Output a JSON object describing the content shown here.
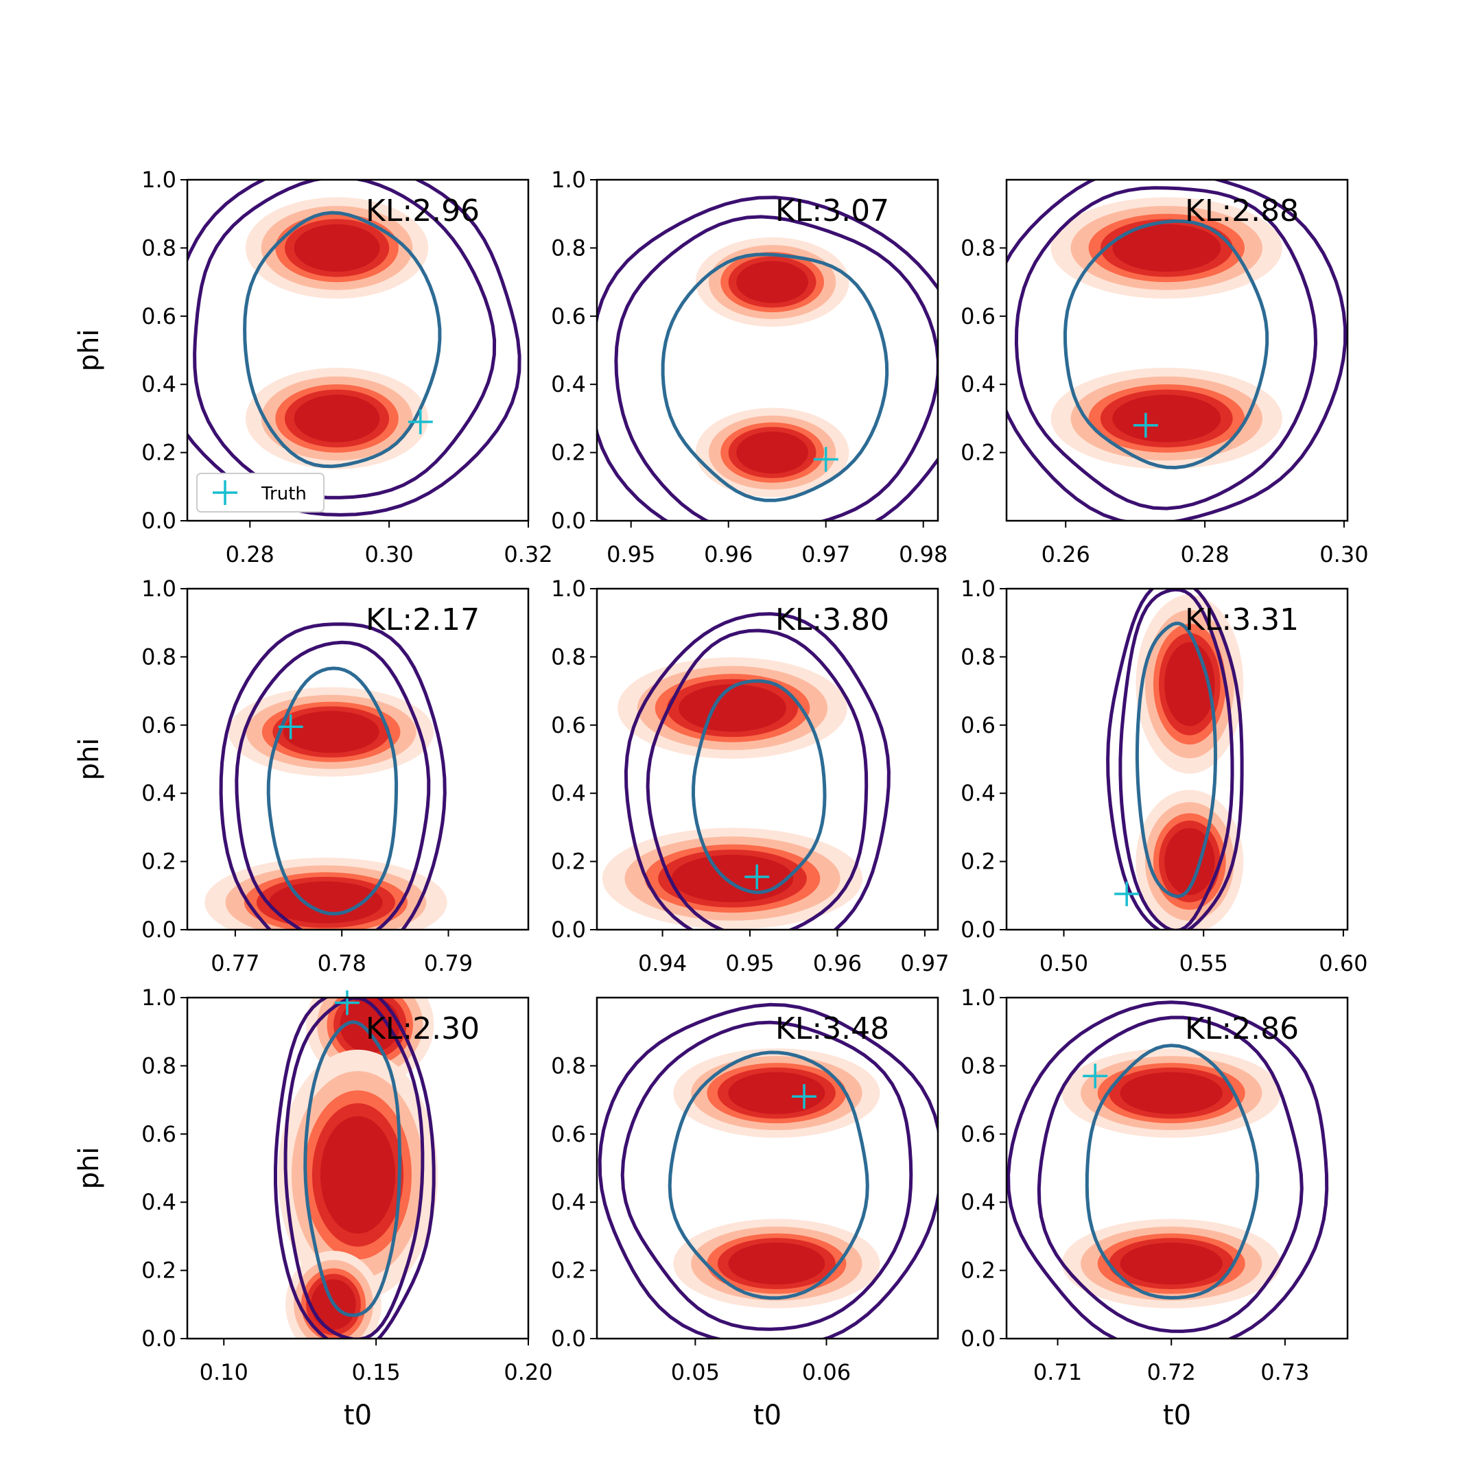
{
  "figure": {
    "legend_label": "Truth",
    "xlabel": "t0",
    "ylabel": "phi",
    "colors": {
      "fill_levels": [
        "#fee5d9",
        "#fcbba1",
        "#fb6a4a",
        "#de2d26",
        "#cb181d"
      ],
      "outer_contour": "#3b0f70",
      "inner_contour": "#2c6b94",
      "truth_marker": "#17becf"
    }
  },
  "chart_data": [
    {
      "type": "contour",
      "kl_label": "KL:2.96",
      "xlim": [
        0.271,
        0.32
      ],
      "xticks": [
        "0.28",
        "0.30",
        "0.32"
      ],
      "ylim": [
        0.0,
        1.0
      ],
      "yticks": [
        "0.0",
        "0.2",
        "0.4",
        "0.6",
        "0.8",
        "1.0"
      ],
      "truth": {
        "t0": 0.3045,
        "phi": 0.29
      },
      "show_legend": true,
      "show_ylabel": true,
      "show_xlabel": false,
      "blobs": [
        {
          "t0": 0.2925,
          "phi": 0.8,
          "rt": 0.0075,
          "rp": 0.085
        },
        {
          "t0": 0.2925,
          "phi": 0.3,
          "rt": 0.0075,
          "rp": 0.085
        }
      ],
      "contour_center": {
        "t0": 0.293,
        "phi": 0.53
      },
      "contour_radii_t0": [
        0.0255,
        0.0215,
        0.014
      ],
      "contour_radii_phi": [
        0.52,
        0.47,
        0.37
      ]
    },
    {
      "type": "contour",
      "kl_label": "KL:3.07",
      "xlim": [
        0.9465,
        0.9815
      ],
      "xticks": [
        "0.95",
        "0.96",
        "0.97",
        "0.98"
      ],
      "ylim": [
        0.0,
        1.0
      ],
      "yticks": [
        "0.0",
        "0.2",
        "0.4",
        "0.6",
        "0.8",
        "1.0"
      ],
      "truth": {
        "t0": 0.97,
        "phi": 0.18
      },
      "show_legend": false,
      "show_ylabel": false,
      "show_xlabel": false,
      "blobs": [
        {
          "t0": 0.9645,
          "phi": 0.7,
          "rt": 0.0045,
          "rp": 0.075
        },
        {
          "t0": 0.9645,
          "phi": 0.2,
          "rt": 0.0045,
          "rp": 0.075
        }
      ],
      "contour_center": {
        "t0": 0.9648,
        "phi": 0.43
      },
      "contour_radii_t0": [
        0.0195,
        0.0165,
        0.0115
      ],
      "contour_radii_phi": [
        0.51,
        0.46,
        0.36
      ]
    },
    {
      "type": "contour",
      "kl_label": "KL:2.88",
      "xlim": [
        0.2515,
        0.3005
      ],
      "xticks": [
        "0.26",
        "0.28",
        "0.30"
      ],
      "ylim": [
        0.0,
        1.0
      ],
      "yticks": [
        "0.2",
        "0.4",
        "0.6",
        "0.8"
      ],
      "truth": {
        "t0": 0.2715,
        "phi": 0.28
      },
      "show_legend": false,
      "show_ylabel": false,
      "show_xlabel": false,
      "blobs": [
        {
          "t0": 0.2745,
          "phi": 0.8,
          "rt": 0.0095,
          "rp": 0.085
        },
        {
          "t0": 0.2745,
          "phi": 0.3,
          "rt": 0.0095,
          "rp": 0.085
        }
      ],
      "contour_center": {
        "t0": 0.2745,
        "phi": 0.52
      },
      "contour_radii_t0": [
        0.0255,
        0.0215,
        0.0145
      ],
      "contour_radii_phi": [
        0.52,
        0.47,
        0.36
      ]
    },
    {
      "type": "contour",
      "kl_label": "KL:2.17",
      "xlim": [
        0.7655,
        0.7975
      ],
      "xticks": [
        "0.77",
        "0.78",
        "0.79"
      ],
      "ylim": [
        0.0,
        1.0
      ],
      "yticks": [
        "0.0",
        "0.2",
        "0.4",
        "0.6",
        "0.8",
        "1.0"
      ],
      "truth": {
        "t0": 0.7752,
        "phi": 0.595
      },
      "show_legend": false,
      "show_ylabel": true,
      "show_xlabel": false,
      "blobs": [
        {
          "t0": 0.779,
          "phi": 0.58,
          "rt": 0.0055,
          "rp": 0.075
        },
        {
          "t0": 0.7785,
          "phi": 0.08,
          "rt": 0.0065,
          "rp": 0.075
        }
      ],
      "contour_center": {
        "t0": 0.7792,
        "phi": 0.4
      },
      "contour_radii_t0": [
        0.0105,
        0.009,
        0.006
      ],
      "contour_radii_phi": [
        0.51,
        0.44,
        0.36
      ]
    },
    {
      "type": "contour",
      "kl_label": "KL:3.80",
      "xlim": [
        0.9325,
        0.9715
      ],
      "xticks": [
        "0.94",
        "0.95",
        "0.96",
        "0.97"
      ],
      "ylim": [
        0.0,
        1.0
      ],
      "yticks": [
        "0.0",
        "0.2",
        "0.4",
        "0.6",
        "0.8",
        "1.0"
      ],
      "truth": {
        "t0": 0.9508,
        "phi": 0.155
      },
      "show_legend": false,
      "show_ylabel": false,
      "show_xlabel": false,
      "blobs": [
        {
          "t0": 0.948,
          "phi": 0.65,
          "rt": 0.0075,
          "rp": 0.085
        },
        {
          "t0": 0.948,
          "phi": 0.15,
          "rt": 0.0085,
          "rp": 0.085
        }
      ],
      "contour_center": {
        "t0": 0.951,
        "phi": 0.42
      },
      "contour_radii_t0": [
        0.015,
        0.0125,
        0.0075
      ],
      "contour_radii_phi": [
        0.5,
        0.45,
        0.31
      ]
    },
    {
      "type": "contour",
      "kl_label": "KL:3.31",
      "xlim": [
        0.4795,
        0.6015
      ],
      "xticks": [
        "0.50",
        "0.55",
        "0.60"
      ],
      "ylim": [
        0.0,
        1.0
      ],
      "yticks": [
        "0.0",
        "0.2",
        "0.4",
        "0.6",
        "0.8",
        "1.0"
      ],
      "truth": {
        "t0": 0.5225,
        "phi": 0.105
      },
      "show_legend": false,
      "show_ylabel": false,
      "show_xlabel": false,
      "blobs": [
        {
          "t0": 0.545,
          "phi": 0.72,
          "rt": 0.011,
          "rp": 0.15
        },
        {
          "t0": 0.545,
          "phi": 0.2,
          "rt": 0.011,
          "rp": 0.12
        }
      ],
      "contour_center": {
        "t0": 0.54,
        "phi": 0.5
      },
      "contour_radii_t0": [
        0.024,
        0.02,
        0.014
      ],
      "contour_radii_phi": [
        0.52,
        0.5,
        0.4
      ]
    },
    {
      "type": "contour",
      "kl_label": "KL:2.30",
      "xlim": [
        0.088,
        0.2
      ],
      "xticks": [
        "0.10",
        "0.15",
        "0.20"
      ],
      "ylim": [
        0.0,
        1.0
      ],
      "yticks": [
        "0.0",
        "0.2",
        "0.4",
        "0.6",
        "0.8",
        "1.0"
      ],
      "truth": {
        "t0": 0.1405,
        "phi": 0.985
      },
      "show_legend": false,
      "show_ylabel": true,
      "show_xlabel": true,
      "blobs": [
        {
          "t0": 0.148,
          "phi": 0.92,
          "rt": 0.012,
          "rp": 0.1
        },
        {
          "t0": 0.144,
          "phi": 0.48,
          "rt": 0.015,
          "rp": 0.21
        },
        {
          "t0": 0.136,
          "phi": 0.1,
          "rt": 0.009,
          "rp": 0.09
        }
      ],
      "contour_center": {
        "t0": 0.1425,
        "phi": 0.5
      },
      "contour_radii_t0": [
        0.026,
        0.0225,
        0.0155
      ],
      "contour_radii_phi": [
        0.53,
        0.5,
        0.43
      ]
    },
    {
      "type": "contour",
      "kl_label": "KL:3.48",
      "xlim": [
        0.0425,
        0.0685
      ],
      "xticks": [
        "0.05",
        "0.06"
      ],
      "ylim": [
        0.0,
        1.0
      ],
      "yticks": [
        "0.0",
        "0.2",
        "0.4",
        "0.6",
        "0.8"
      ],
      "truth": {
        "t0": 0.0583,
        "phi": 0.71
      },
      "show_legend": false,
      "show_ylabel": false,
      "show_xlabel": true,
      "blobs": [
        {
          "t0": 0.0562,
          "phi": 0.72,
          "rt": 0.0045,
          "rp": 0.075
        },
        {
          "t0": 0.0562,
          "phi": 0.22,
          "rt": 0.0045,
          "rp": 0.075
        }
      ],
      "contour_center": {
        "t0": 0.0557,
        "phi": 0.48
      },
      "contour_radii_t0": [
        0.013,
        0.011,
        0.0075
      ],
      "contour_radii_phi": [
        0.5,
        0.45,
        0.36
      ]
    },
    {
      "type": "contour",
      "kl_label": "KL:2.86",
      "xlim": [
        0.7055,
        0.7355
      ],
      "xticks": [
        "0.71",
        "0.72",
        "0.73"
      ],
      "ylim": [
        0.0,
        1.0
      ],
      "yticks": [
        "0.0",
        "0.2",
        "0.4",
        "0.6",
        "0.8",
        "1.0"
      ],
      "truth": {
        "t0": 0.7133,
        "phi": 0.77
      },
      "show_legend": false,
      "show_ylabel": false,
      "show_xlabel": true,
      "blobs": [
        {
          "t0": 0.72,
          "phi": 0.72,
          "rt": 0.0055,
          "rp": 0.075
        },
        {
          "t0": 0.72,
          "phi": 0.22,
          "rt": 0.0055,
          "rp": 0.075
        }
      ],
      "contour_center": {
        "t0": 0.72,
        "phi": 0.48
      },
      "contour_radii_t0": [
        0.014,
        0.0115,
        0.0075
      ],
      "contour_radii_phi": [
        0.51,
        0.46,
        0.37
      ]
    }
  ]
}
